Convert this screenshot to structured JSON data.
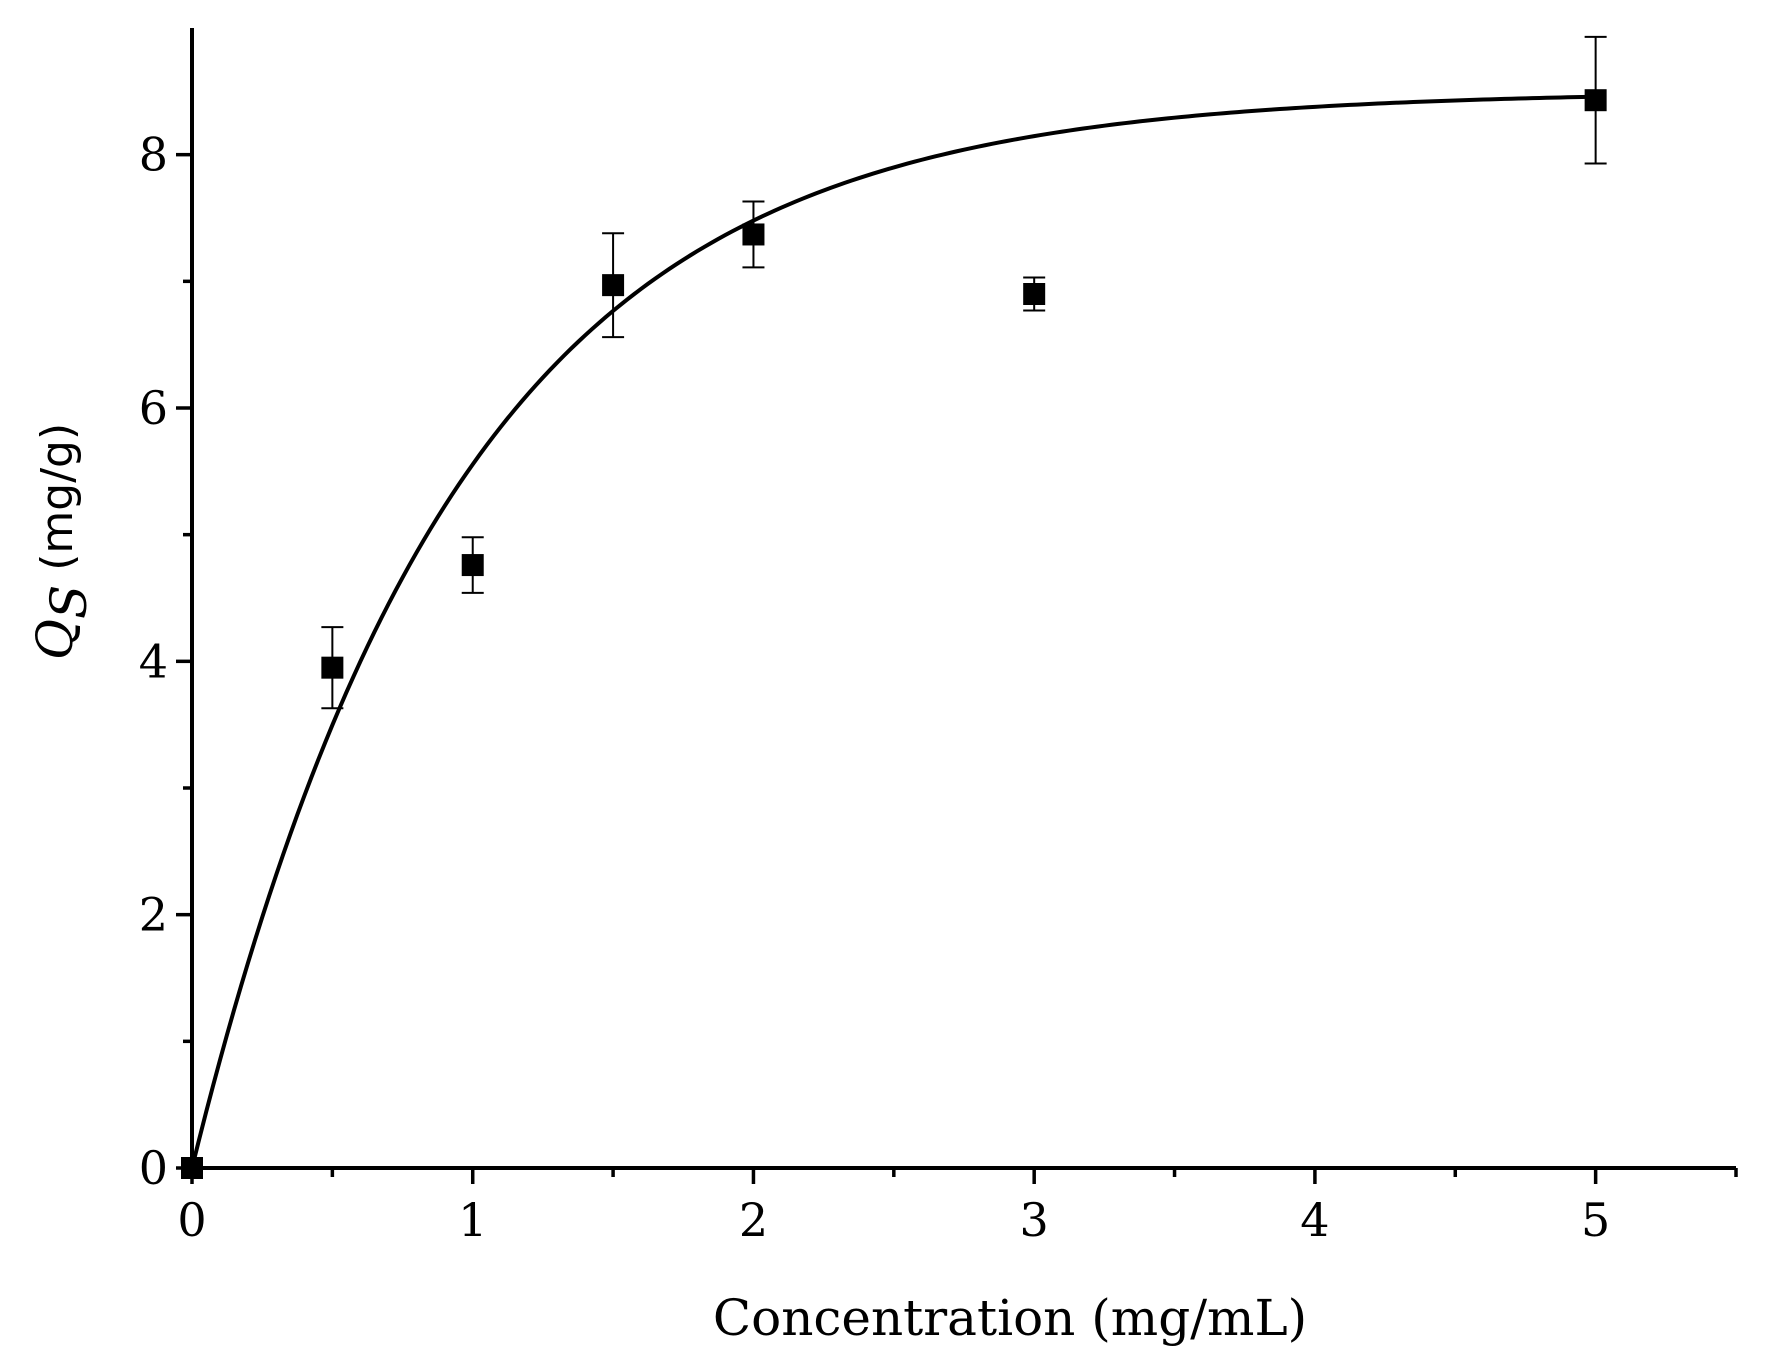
{
  "chart_data": {
    "type": "scatter",
    "title": "",
    "xlabel": "Concentration (mg/mL)",
    "ylabel": {
      "symbol": "Q",
      "subscript": "S",
      "unit": " (mg/g)"
    },
    "xlim": [
      0,
      5.5
    ],
    "ylim": [
      0,
      9
    ],
    "x_ticks": [
      0,
      1,
      2,
      3,
      4,
      5
    ],
    "x_minor_ticks": [
      0.5,
      1.5,
      2.5,
      3.5,
      4.5,
      5.5
    ],
    "y_ticks": [
      0,
      2,
      4,
      6,
      8
    ],
    "y_minor_ticks": [
      1,
      3,
      5,
      7
    ],
    "grid": false,
    "legend": "none",
    "series": [
      {
        "kind": "points-with-error",
        "x": [
          0,
          0.5,
          1,
          1.5,
          2,
          3,
          5
        ],
        "y": [
          0,
          3.95,
          4.76,
          6.97,
          7.37,
          6.9,
          8.43
        ],
        "err": [
          0,
          0.32,
          0.22,
          0.41,
          0.26,
          0.13,
          0.5
        ],
        "color": "#000000"
      },
      {
        "kind": "fit-line",
        "model": "exponential-saturation",
        "params": {
          "qmax": 8.5,
          "k": 1.06
        },
        "color": "#000000"
      }
    ]
  }
}
